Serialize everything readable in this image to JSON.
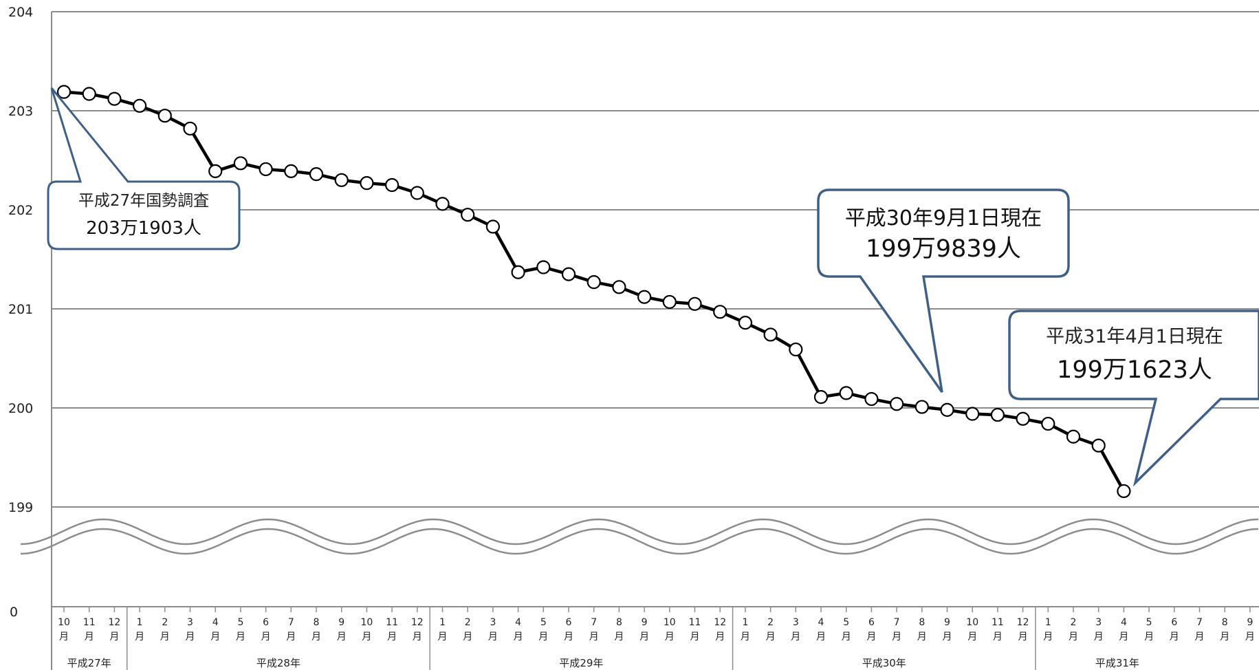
{
  "chart_data": {
    "type": "line",
    "y_ticks": [
      "204",
      "203",
      "202",
      "201",
      "200",
      "199",
      "0"
    ],
    "ylim": [
      199,
      204
    ],
    "axis_break": true,
    "grid": true,
    "x_month_labels": [
      "10\n月",
      "11\n月",
      "12\n月",
      "1\n月",
      "2\n月",
      "3\n月",
      "4\n月",
      "5\n月",
      "6\n月",
      "7\n月",
      "8\n月",
      "9\n月",
      "10\n月",
      "11\n月",
      "12\n月",
      "1\n月",
      "2\n月",
      "3\n月",
      "4\n月",
      "5\n月",
      "6\n月",
      "7\n月",
      "8\n月",
      "9\n月",
      "10\n月",
      "11\n月",
      "12\n月",
      "1\n月",
      "2\n月",
      "3\n月",
      "4\n月",
      "5\n月",
      "6\n月",
      "7\n月",
      "8\n月",
      "9\n月",
      "10\n月",
      "11\n月",
      "12\n月",
      "1\n月",
      "2\n月",
      "3\n月",
      "4\n月",
      "5\n月",
      "6\n月",
      "7\n月",
      "8\n月",
      "9\n月"
    ],
    "year_groups": [
      {
        "label": "平成27年",
        "months": 3
      },
      {
        "label": "平成28年",
        "months": 12
      },
      {
        "label": "平成29年",
        "months": 12
      },
      {
        "label": "平成30年",
        "months": 12
      },
      {
        "label": "平成31年",
        "months": 9
      }
    ],
    "series": [
      {
        "values": [
          203.19,
          203.17,
          203.12,
          203.05,
          202.95,
          202.82,
          202.39,
          202.47,
          202.41,
          202.39,
          202.36,
          202.3,
          202.27,
          202.25,
          202.17,
          202.06,
          201.95,
          201.83,
          201.37,
          201.42,
          201.35,
          201.27,
          201.22,
          201.12,
          201.07,
          201.05,
          200.97,
          200.86,
          200.74,
          200.59,
          200.11,
          200.15,
          200.09,
          200.04,
          200.01,
          199.98,
          199.94,
          199.93,
          199.89,
          199.84,
          199.71,
          199.62,
          199.16
        ]
      }
    ],
    "annotations": [
      {
        "line1": "平成27年国勢調査",
        "line2": "203万1903人"
      },
      {
        "line1": "平成30年9月1日現在",
        "line2": "199万9839人"
      },
      {
        "line1": "平成31年4月1日現在",
        "line2": "199万1623人"
      }
    ]
  }
}
